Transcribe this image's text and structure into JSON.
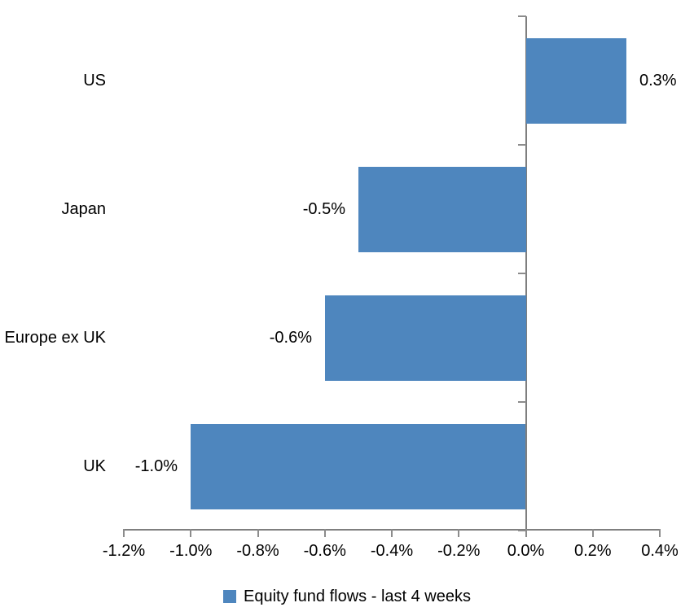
{
  "chart_data": {
    "type": "bar",
    "orientation": "horizontal",
    "categories": [
      "US",
      "Japan",
      "Europe ex UK",
      "UK"
    ],
    "values": [
      0.3,
      -0.5,
      -0.6,
      -1.0
    ],
    "value_labels": [
      "0.3%",
      "-0.5%",
      "-0.6%",
      "-1.0%"
    ],
    "series": [
      {
        "name": "Equity fund flows - last 4 weeks",
        "values": [
          0.3,
          -0.5,
          -0.6,
          -1.0
        ]
      }
    ],
    "x_axis": {
      "min": -1.2,
      "max": 0.4,
      "step": 0.2,
      "tick_labels": [
        "-1.2%",
        "-1.0%",
        "-0.8%",
        "-0.6%",
        "-0.4%",
        "-0.2%",
        "0.0%",
        "0.2%",
        "0.4%"
      ]
    },
    "legend": {
      "position": "bottom",
      "label": "Equity fund flows - last 4 weeks"
    },
    "grid": false,
    "colors": {
      "bar": "#4e86be",
      "axis": "#7f7f7f",
      "tick": "#8c8c8c",
      "text": "#000000",
      "background": "#ffffff"
    }
  }
}
